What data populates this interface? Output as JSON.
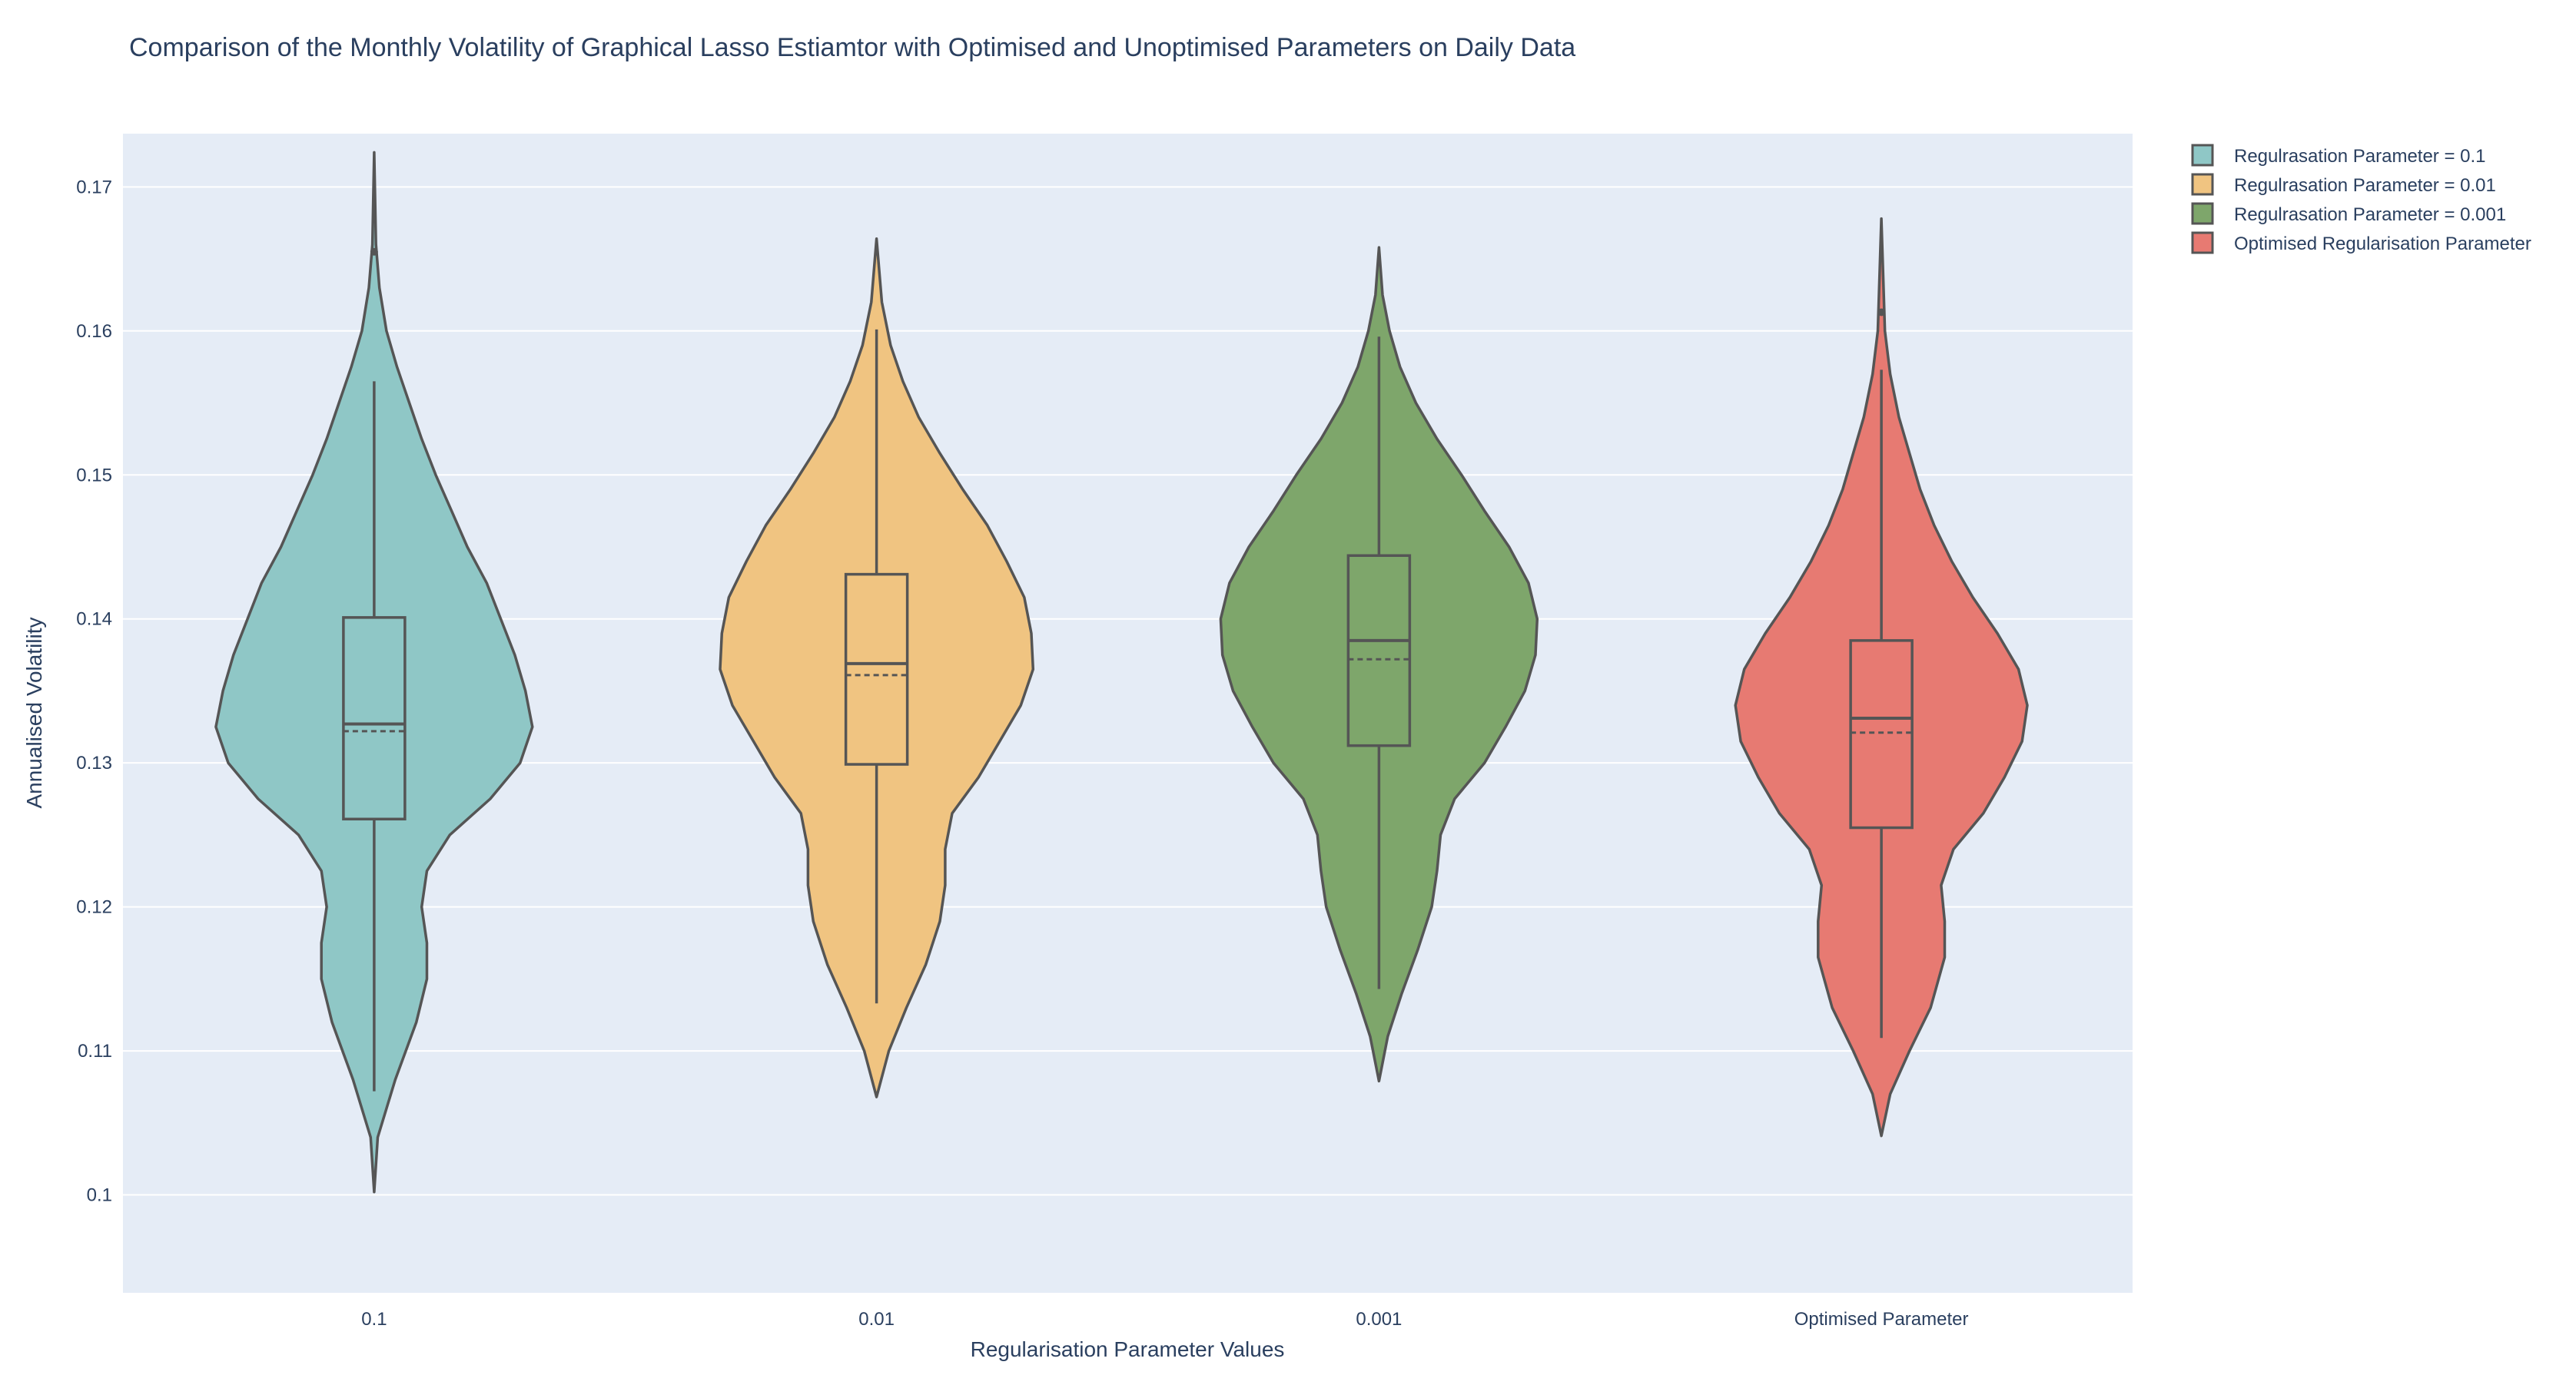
{
  "chart_data": {
    "type": "violin",
    "title": "Comparison of the Monthly Volatility of Graphical Lasso Estiamtor with Optimised and Unoptimised Parameters on Daily Data",
    "xlabel": "Regularisation Parameter Values",
    "ylabel": "Annualised Volatility",
    "ylim": [
      0.0932,
      0.1737
    ],
    "yticks": [
      0.1,
      0.11,
      0.12,
      0.13,
      0.14,
      0.15,
      0.16,
      0.17
    ],
    "ytick_labels": [
      "0.1",
      "0.11",
      "0.12",
      "0.13",
      "0.14",
      "0.15",
      "0.16",
      "0.17"
    ],
    "categories": [
      "0.1",
      "0.01",
      "0.001",
      "Optimised Parameter"
    ],
    "grid": true,
    "legend_position": "top-right",
    "colors": {
      "plot_background": "#e5ecf6",
      "grid": "#ffffff",
      "outline": "#555555",
      "text": "#2a3f5f"
    },
    "series": [
      {
        "name": "Regulrasation Parameter = 0.1",
        "category": "0.1",
        "color": "#8fc7c6",
        "box": {
          "min": 0.1072,
          "q1": 0.1261,
          "median": 0.1327,
          "mean": 0.1322,
          "q3": 0.1401,
          "max": 0.1565
        },
        "outliers": [
          0.1655
        ],
        "span": [
          0.1002,
          0.1724
        ],
        "density": [
          [
            0.1002,
            0
          ],
          [
            0.104,
            0.02
          ],
          [
            0.108,
            0.12
          ],
          [
            0.112,
            0.24
          ],
          [
            0.115,
            0.3
          ],
          [
            0.1175,
            0.3
          ],
          [
            0.12,
            0.27
          ],
          [
            0.1225,
            0.3
          ],
          [
            0.125,
            0.43
          ],
          [
            0.1275,
            0.66
          ],
          [
            0.13,
            0.83
          ],
          [
            0.1325,
            0.9
          ],
          [
            0.135,
            0.86
          ],
          [
            0.1375,
            0.8
          ],
          [
            0.14,
            0.72
          ],
          [
            0.1425,
            0.64
          ],
          [
            0.145,
            0.53
          ],
          [
            0.1475,
            0.44
          ],
          [
            0.15,
            0.35
          ],
          [
            0.1525,
            0.27
          ],
          [
            0.155,
            0.2
          ],
          [
            0.1575,
            0.13
          ],
          [
            0.16,
            0.07
          ],
          [
            0.163,
            0.03
          ],
          [
            0.166,
            0.01
          ],
          [
            0.1724,
            0
          ]
        ]
      },
      {
        "name": "Regulrasation Parameter = 0.01",
        "category": "0.01",
        "color": "#f0c481",
        "box": {
          "min": 0.1133,
          "q1": 0.1299,
          "median": 0.1369,
          "mean": 0.1361,
          "q3": 0.1431,
          "max": 0.1601
        },
        "outliers": [],
        "span": [
          0.1068,
          0.1664
        ],
        "density": [
          [
            0.1068,
            0
          ],
          [
            0.11,
            0.07
          ],
          [
            0.113,
            0.17
          ],
          [
            0.116,
            0.28
          ],
          [
            0.119,
            0.36
          ],
          [
            0.1215,
            0.39
          ],
          [
            0.124,
            0.39
          ],
          [
            0.1265,
            0.43
          ],
          [
            0.129,
            0.58
          ],
          [
            0.1315,
            0.7
          ],
          [
            0.134,
            0.82
          ],
          [
            0.1365,
            0.89
          ],
          [
            0.139,
            0.88
          ],
          [
            0.1415,
            0.84
          ],
          [
            0.144,
            0.74
          ],
          [
            0.1465,
            0.63
          ],
          [
            0.149,
            0.49
          ],
          [
            0.1515,
            0.36
          ],
          [
            0.154,
            0.24
          ],
          [
            0.1565,
            0.15
          ],
          [
            0.159,
            0.08
          ],
          [
            0.162,
            0.03
          ],
          [
            0.1664,
            0
          ]
        ]
      },
      {
        "name": "Regulrasation Parameter = 0.001",
        "category": "0.001",
        "color": "#7ea66b",
        "box": {
          "min": 0.1143,
          "q1": 0.1312,
          "median": 0.1385,
          "mean": 0.1372,
          "q3": 0.1444,
          "max": 0.1596
        },
        "outliers": [],
        "span": [
          0.1079,
          0.1658
        ],
        "density": [
          [
            0.1079,
            0
          ],
          [
            0.111,
            0.05
          ],
          [
            0.114,
            0.13
          ],
          [
            0.117,
            0.22
          ],
          [
            0.12,
            0.3
          ],
          [
            0.1225,
            0.33
          ],
          [
            0.125,
            0.35
          ],
          [
            0.1275,
            0.43
          ],
          [
            0.13,
            0.6
          ],
          [
            0.1325,
            0.72
          ],
          [
            0.135,
            0.83
          ],
          [
            0.1375,
            0.89
          ],
          [
            0.14,
            0.9
          ],
          [
            0.1425,
            0.85
          ],
          [
            0.145,
            0.74
          ],
          [
            0.1475,
            0.6
          ],
          [
            0.15,
            0.47
          ],
          [
            0.1525,
            0.33
          ],
          [
            0.155,
            0.21
          ],
          [
            0.1575,
            0.12
          ],
          [
            0.16,
            0.06
          ],
          [
            0.1625,
            0.02
          ],
          [
            0.1658,
            0
          ]
        ]
      },
      {
        "name": "Optimised Regularisation Parameter",
        "category": "Optimised Parameter",
        "color": "#e77a72",
        "box": {
          "min": 0.1109,
          "q1": 0.1255,
          "median": 0.1331,
          "mean": 0.1321,
          "q3": 0.1385,
          "max": 0.1573
        },
        "outliers": [
          0.1613
        ],
        "span": [
          0.1041,
          0.1678
        ],
        "density": [
          [
            0.1041,
            0
          ],
          [
            0.107,
            0.05
          ],
          [
            0.11,
            0.16
          ],
          [
            0.113,
            0.28
          ],
          [
            0.1165,
            0.36
          ],
          [
            0.119,
            0.36
          ],
          [
            0.1215,
            0.34
          ],
          [
            0.124,
            0.41
          ],
          [
            0.1265,
            0.58
          ],
          [
            0.129,
            0.7
          ],
          [
            0.1315,
            0.8
          ],
          [
            0.134,
            0.83
          ],
          [
            0.1365,
            0.78
          ],
          [
            0.139,
            0.66
          ],
          [
            0.1415,
            0.52
          ],
          [
            0.144,
            0.4
          ],
          [
            0.1465,
            0.3
          ],
          [
            0.149,
            0.22
          ],
          [
            0.1515,
            0.16
          ],
          [
            0.154,
            0.1
          ],
          [
            0.157,
            0.05
          ],
          [
            0.16,
            0.02
          ],
          [
            0.1678,
            0
          ]
        ]
      }
    ]
  }
}
